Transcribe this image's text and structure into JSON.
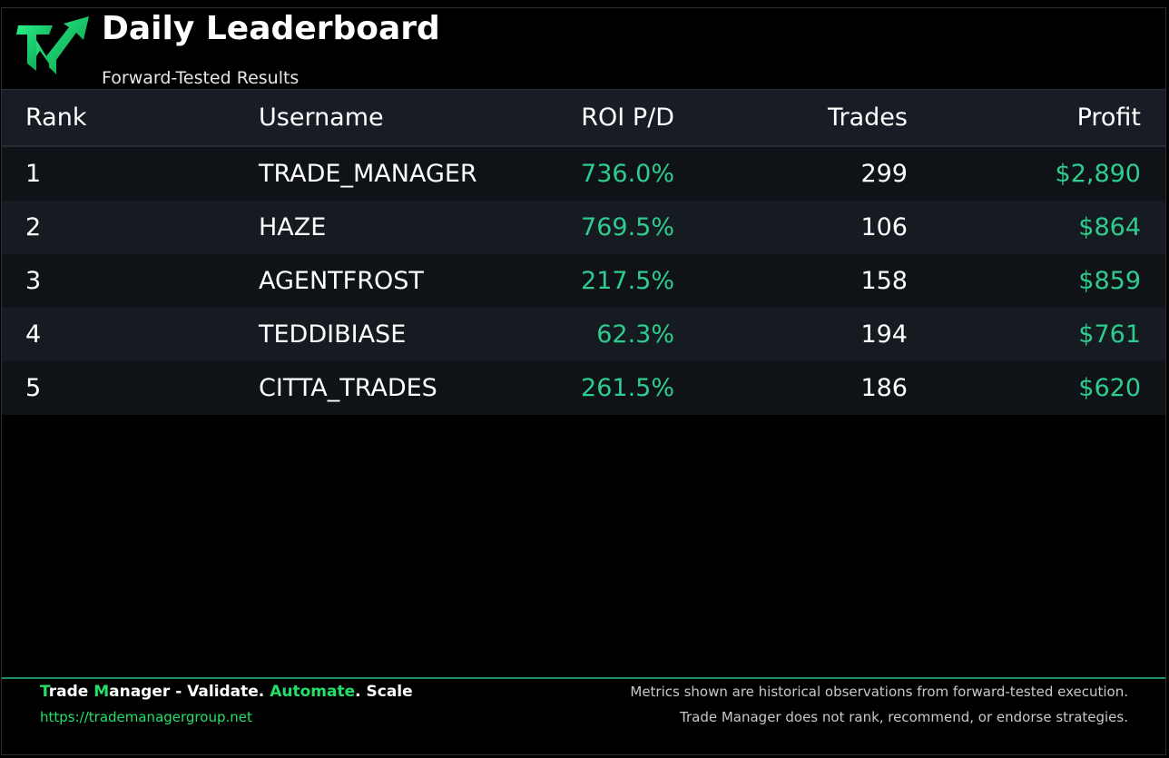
{
  "header": {
    "title": "Daily Leaderboard",
    "subtitle": "Forward-Tested Results",
    "logo": "trade-manager-logo"
  },
  "table": {
    "columns": [
      "Rank",
      "Username",
      "ROI P/D",
      "Trades",
      "Profit"
    ],
    "rows": [
      {
        "rank": "1",
        "username": "TRADE_MANAGER",
        "roi": "736.0%",
        "trades": "299",
        "profit": "$2,890"
      },
      {
        "rank": "2",
        "username": "HAZE",
        "roi": "769.5%",
        "trades": "106",
        "profit": "$864"
      },
      {
        "rank": "3",
        "username": "AGENTFROST",
        "roi": "217.5%",
        "trades": "158",
        "profit": "$859"
      },
      {
        "rank": "4",
        "username": "TEDDIBIASE",
        "roi": "62.3%",
        "trades": "194",
        "profit": "$761"
      },
      {
        "rank": "5",
        "username": "CITTA_TRADES",
        "roi": "261.5%",
        "trades": "186",
        "profit": "$620"
      }
    ]
  },
  "footer": {
    "brand_t": "T",
    "brand_rade": "rade ",
    "brand_m": "M",
    "brand_anager": "anager - Validate. ",
    "brand_automate": "Automate",
    "brand_scale": ". Scale",
    "url": "https://trademanagergroup.net",
    "note1": "Metrics shown are historical observations from forward-tested execution.",
    "note2": "Trade Manager does not rank, recommend, or endorse strategies."
  },
  "colors": {
    "accent": "#2ecc8e",
    "brand_green": "#22e06a",
    "header_bg": "#181c24"
  }
}
